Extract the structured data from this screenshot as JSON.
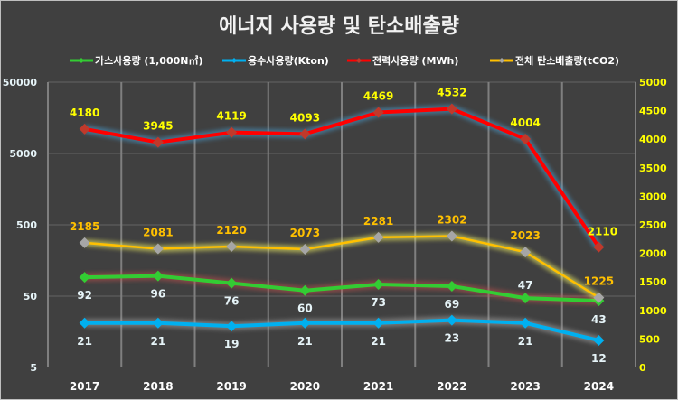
{
  "chart_data": {
    "type": "line",
    "title": "에너지 사용량 및 탄소배출량",
    "categories": [
      "2017",
      "2018",
      "2019",
      "2020",
      "2021",
      "2022",
      "2023",
      "2024"
    ],
    "left_axis": {
      "scale": "log",
      "ylim": [
        5,
        50000
      ],
      "ticks": [
        "50000",
        "5000",
        "500",
        "50",
        "5"
      ],
      "tick_values": [
        50000,
        5000,
        500,
        50,
        5
      ]
    },
    "right_axis": {
      "scale": "linear",
      "ylim": [
        0,
        5000
      ],
      "ticks": [
        "5000",
        "4500",
        "4000",
        "3500",
        "3000",
        "2500",
        "2000",
        "1500",
        "1000",
        "500",
        "0"
      ],
      "tick_values": [
        5000,
        4500,
        4000,
        3500,
        3000,
        2500,
        2000,
        1500,
        1000,
        500,
        0
      ]
    },
    "grid": true,
    "legend_position": "top",
    "series": [
      {
        "name": "가스사용량 (1,000N㎥)",
        "axis": "left",
        "color": "#33cc33",
        "marker_color": "#33cc33",
        "glow": "#c0504d",
        "label_color": "#e6f4f8",
        "label_pos": "below",
        "values": [
          92,
          96,
          76,
          60,
          73,
          69,
          47,
          43
        ]
      },
      {
        "name": "용수사용량(Kton)",
        "axis": "left",
        "color": "#00b0f0",
        "marker_color": "#00b0f0",
        "glow": "#a6a6a6",
        "label_color": "#e6f4f8",
        "label_pos": "below",
        "values": [
          21,
          21,
          19,
          21,
          21,
          23,
          21,
          12
        ]
      },
      {
        "name": "전력사용량 (MWh)",
        "axis": "right",
        "color": "#ff0000",
        "marker_color": "#c0392b",
        "glow": "#4aa3d8",
        "label_color": "#ffff00",
        "label_pos": "above",
        "values": [
          4180,
          3945,
          4119,
          4093,
          4469,
          4532,
          4004,
          2110
        ]
      },
      {
        "name": "전체 탄소배출량(tCO2)",
        "axis": "right",
        "color": "#ffc000",
        "marker_color": "#a6a6a6",
        "glow": "#ffff66",
        "label_color": "#ffc000",
        "label_pos": "above",
        "values": [
          2185,
          2081,
          2120,
          2073,
          2281,
          2302,
          2023,
          1225
        ]
      }
    ]
  }
}
